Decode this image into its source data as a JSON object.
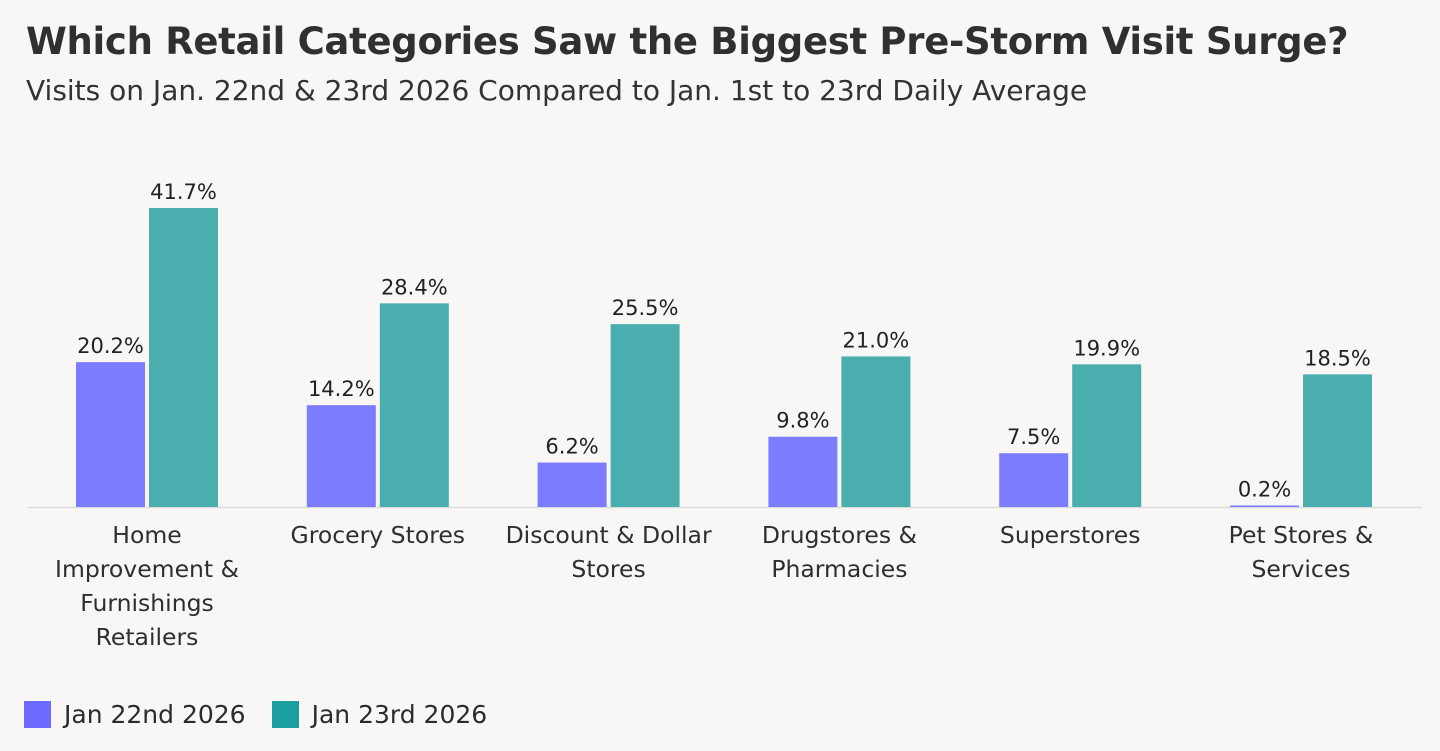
{
  "chart_data": {
    "type": "bar",
    "title": "Which Retail Categories Saw the Biggest Pre-Storm Visit Surge?",
    "subtitle": "Visits on Jan. 22nd & 23rd 2026 Compared to Jan. 1st to 23rd Daily Average",
    "categories": [
      "Home Improvement & Furnishings Retailers",
      "Grocery Stores",
      "Discount & Dollar Stores",
      "Drugstores & Pharmacies",
      "Superstores",
      "Pet Stores & Services"
    ],
    "category_lines": [
      [
        "Home",
        "Improvement &",
        "Furnishings",
        "Retailers"
      ],
      [
        "Grocery Stores"
      ],
      [
        "Discount & Dollar",
        "Stores"
      ],
      [
        "Drugstores &",
        "Pharmacies"
      ],
      [
        "Superstores"
      ],
      [
        "Pet Stores &",
        "Services"
      ]
    ],
    "series": [
      {
        "name": "Jan 22nd 2026",
        "color": "#7b7cff",
        "values": [
          20.2,
          14.2,
          6.2,
          9.8,
          7.5,
          0.2
        ],
        "labels": [
          "20.2%",
          "14.2%",
          "6.2%",
          "9.8%",
          "7.5%",
          "0.2%"
        ]
      },
      {
        "name": "Jan 23rd 2026",
        "color": "#4aaeae",
        "values": [
          41.7,
          28.4,
          25.5,
          21.0,
          19.9,
          18.5
        ],
        "labels": [
          "41.7%",
          "28.4%",
          "25.5%",
          "21.0%",
          "19.9%",
          "18.5%"
        ]
      }
    ],
    "ylim": [
      0,
      41.7
    ],
    "grid": false,
    "legend_position": "bottom-left"
  },
  "legend": {
    "jan22_label": "Jan 22nd 2026",
    "jan23_label": "Jan 23rd 2026",
    "jan22_color": "#6b6bff",
    "jan23_color": "#1a9e9e"
  }
}
